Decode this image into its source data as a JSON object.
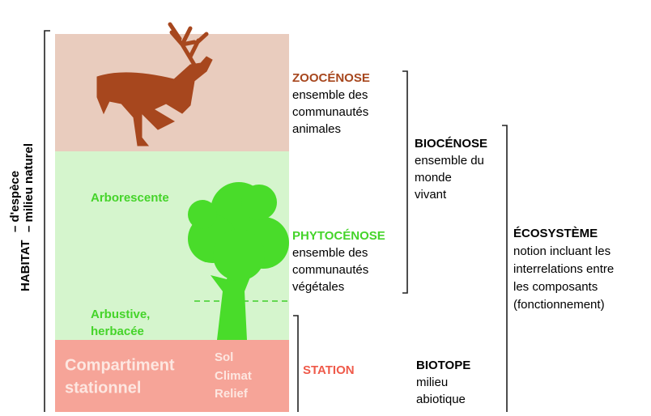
{
  "habitat": {
    "title": "HABITAT",
    "lines": [
      "– d'espèce",
      "– milieu naturel"
    ]
  },
  "zones": {
    "arborescente": "Arborescente",
    "arbustive": [
      "Arbustive,",
      "herbacée"
    ],
    "compartiment": [
      "Compartiment",
      "stationnel"
    ],
    "factors": [
      "Sol",
      "Climat",
      "Relief"
    ]
  },
  "zoocenose": {
    "title": "ZOOCÉNOSE",
    "lines": [
      "ensemble des",
      "communautés",
      "animales"
    ]
  },
  "phytocenose": {
    "title": "PHYTOCÉNOSE",
    "lines": [
      "ensemble des",
      "communautés",
      "végétales"
    ]
  },
  "station": {
    "title": "STATION"
  },
  "biocenose": {
    "title": "BIOCÉNOSE",
    "lines": [
      "ensemble du",
      "monde",
      "vivant"
    ]
  },
  "biotope": {
    "title": "BIOTOPE",
    "lines": [
      "milieu",
      "abiotique"
    ]
  },
  "ecosysteme": {
    "title": "ÉCOSYSTÈME",
    "lines": [
      "notion incluant les",
      "interrelations entre",
      "les composants",
      "(fonctionnement)"
    ]
  }
}
